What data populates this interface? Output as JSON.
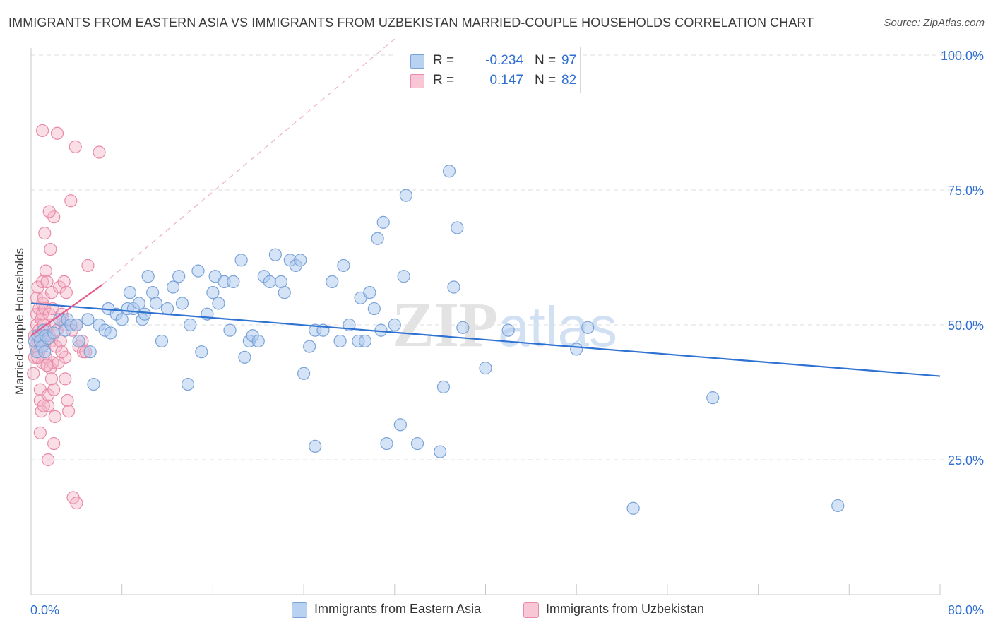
{
  "title": "IMMIGRANTS FROM EASTERN ASIA VS IMMIGRANTS FROM UZBEKISTAN MARRIED-COUPLE HOUSEHOLDS CORRELATION CHART",
  "source": "Source: ZipAtlas.com",
  "watermark": {
    "zip": "ZIP",
    "atlas": "atlas"
  },
  "legend": {
    "rows": [
      {
        "r_label": "R =",
        "r_value": "-0.234",
        "n_label": "N =",
        "n_value": "97"
      },
      {
        "r_label": "R =",
        "r_value": "0.147",
        "n_label": "N =",
        "n_value": "82"
      }
    ]
  },
  "bottom_legend": {
    "series1": "Immigrants from Eastern Asia",
    "series2": "Immigrants from Uzbekistan"
  },
  "colors": {
    "blue_fill": "#a9c7ee",
    "blue_stroke": "#7aa3d8",
    "blue_line": "#2f72d2",
    "pink_fill": "#f5b5c8",
    "pink_stroke": "#e88aa8",
    "pink_line": "#e45a8a",
    "grid": "#dddddd",
    "axis_text": "#2e6fd1"
  },
  "chart_data": {
    "type": "scatter",
    "title": "IMMIGRANTS FROM EASTERN ASIA VS IMMIGRANTS FROM UZBEKISTAN MARRIED-COUPLE HOUSEHOLDS CORRELATION CHART",
    "xlabel": "",
    "ylabel": "Married-couple Households",
    "xlim": [
      0,
      80
    ],
    "ylim": [
      0,
      105
    ],
    "x_tick_labels": [
      "0.0%",
      "80.0%"
    ],
    "y_ticks": [
      25,
      50,
      75,
      100
    ],
    "y_tick_labels": [
      "25.0%",
      "50.0%",
      "75.0%",
      "100.0%"
    ],
    "series": [
      {
        "name": "Immigrants from Eastern Asia",
        "r": -0.234,
        "n": 97,
        "trend": {
          "x0": 0,
          "y0": 54.0,
          "x1": 80,
          "y1": 40.5
        },
        "points": [
          [
            0.3,
            47
          ],
          [
            0.5,
            45
          ],
          [
            0.6,
            48
          ],
          [
            0.8,
            47
          ],
          [
            1,
            46
          ],
          [
            1.1,
            49
          ],
          [
            1.2,
            45
          ],
          [
            1.3,
            48
          ],
          [
            1.5,
            47.5
          ],
          [
            2,
            48.5
          ],
          [
            2.5,
            51
          ],
          [
            3,
            49
          ],
          [
            3.2,
            51
          ],
          [
            3.5,
            50
          ],
          [
            4,
            50
          ],
          [
            4.2,
            47
          ],
          [
            5,
            51
          ],
          [
            5.2,
            45
          ],
          [
            5.5,
            39
          ],
          [
            6,
            50
          ],
          [
            6.5,
            49
          ],
          [
            6.8,
            53
          ],
          [
            7,
            48.5
          ],
          [
            7.5,
            52
          ],
          [
            8,
            51
          ],
          [
            8.5,
            53
          ],
          [
            8.7,
            56
          ],
          [
            9,
            53
          ],
          [
            9.5,
            54
          ],
          [
            9.8,
            51
          ],
          [
            10,
            52
          ],
          [
            10.3,
            59
          ],
          [
            10.7,
            56
          ],
          [
            11,
            54
          ],
          [
            11.5,
            47
          ],
          [
            12,
            53
          ],
          [
            12.5,
            57
          ],
          [
            13,
            59
          ],
          [
            13.3,
            54
          ],
          [
            13.8,
            39
          ],
          [
            14,
            50
          ],
          [
            14.7,
            60
          ],
          [
            15,
            45
          ],
          [
            15.5,
            52
          ],
          [
            16,
            56
          ],
          [
            16.2,
            59
          ],
          [
            16.5,
            54
          ],
          [
            17,
            58
          ],
          [
            17.5,
            49
          ],
          [
            17.8,
            58
          ],
          [
            18.5,
            62
          ],
          [
            18.8,
            44
          ],
          [
            19.2,
            47
          ],
          [
            19.5,
            48
          ],
          [
            20,
            47
          ],
          [
            20.5,
            59
          ],
          [
            21,
            58
          ],
          [
            21.5,
            63
          ],
          [
            22,
            58
          ],
          [
            22.3,
            56
          ],
          [
            22.8,
            62
          ],
          [
            23.3,
            61
          ],
          [
            23.7,
            62
          ],
          [
            24,
            41
          ],
          [
            24.5,
            46
          ],
          [
            25,
            49
          ],
          [
            25.7,
            49
          ],
          [
            26.5,
            58
          ],
          [
            27.2,
            47
          ],
          [
            27.5,
            61
          ],
          [
            28,
            50
          ],
          [
            28.8,
            47
          ],
          [
            29,
            55
          ],
          [
            29.4,
            47
          ],
          [
            29.8,
            56
          ],
          [
            30.2,
            53
          ],
          [
            30.5,
            66
          ],
          [
            30.8,
            49
          ],
          [
            31,
            69
          ],
          [
            32,
            50
          ],
          [
            32.5,
            31.5
          ],
          [
            32.8,
            59
          ],
          [
            33,
            74
          ],
          [
            31.3,
            28
          ],
          [
            34,
            28
          ],
          [
            36,
            26.5
          ],
          [
            36.3,
            38.5
          ],
          [
            36.8,
            78.5
          ],
          [
            37.2,
            57
          ],
          [
            37.5,
            68
          ],
          [
            38,
            49.5
          ],
          [
            40,
            42
          ],
          [
            42,
            49
          ],
          [
            48,
            45.5
          ],
          [
            49,
            49.5
          ],
          [
            53,
            16
          ],
          [
            60,
            36.5
          ],
          [
            71,
            16.5
          ],
          [
            25,
            27.5
          ]
        ]
      },
      {
        "name": "Immigrants from Uzbekistan",
        "r": 0.147,
        "n": 82,
        "trend": {
          "x0": 0,
          "y0": 48.0,
          "x1": 6.3,
          "y1": 57.5
        },
        "dashed_extension": {
          "x0": 6.3,
          "y0": 57.5,
          "x1": 32,
          "y1": 103
        },
        "points": [
          [
            0.2,
            41
          ],
          [
            0.3,
            44
          ],
          [
            0.3,
            48
          ],
          [
            0.4,
            46
          ],
          [
            0.5,
            50
          ],
          [
            0.5,
            52
          ],
          [
            0.5,
            55
          ],
          [
            0.6,
            47
          ],
          [
            0.6,
            57
          ],
          [
            0.7,
            45
          ],
          [
            0.7,
            49
          ],
          [
            0.7,
            53
          ],
          [
            0.8,
            30
          ],
          [
            0.8,
            36
          ],
          [
            0.8,
            38
          ],
          [
            0.9,
            46
          ],
          [
            0.9,
            48
          ],
          [
            0.9,
            51
          ],
          [
            1,
            43
          ],
          [
            1,
            52
          ],
          [
            1,
            54
          ],
          [
            1,
            58
          ],
          [
            1.1,
            50
          ],
          [
            1.1,
            55
          ],
          [
            1.2,
            47
          ],
          [
            1.2,
            53
          ],
          [
            1.3,
            44
          ],
          [
            1.3,
            60
          ],
          [
            1.4,
            49
          ],
          [
            1.4,
            58
          ],
          [
            1.5,
            25
          ],
          [
            1.5,
            35
          ],
          [
            1.5,
            37
          ],
          [
            1.6,
            48
          ],
          [
            1.6,
            52
          ],
          [
            1.7,
            42
          ],
          [
            1.7,
            64
          ],
          [
            1.8,
            47
          ],
          [
            1.8,
            56
          ],
          [
            1.9,
            43
          ],
          [
            1.9,
            53
          ],
          [
            2,
            28
          ],
          [
            2,
            70
          ],
          [
            2,
            38
          ],
          [
            2.2,
            46
          ],
          [
            2.2,
            50
          ],
          [
            2.3,
            49
          ],
          [
            2.5,
            57
          ],
          [
            2.6,
            47
          ],
          [
            2.7,
            52
          ],
          [
            2.8,
            51
          ],
          [
            2.9,
            58
          ],
          [
            3,
            40
          ],
          [
            3,
            44
          ],
          [
            3,
            50
          ],
          [
            3.1,
            56
          ],
          [
            3.2,
            36
          ],
          [
            3.3,
            34
          ],
          [
            3.5,
            73
          ],
          [
            3.7,
            18
          ],
          [
            3.9,
            83
          ],
          [
            4,
            17
          ],
          [
            4,
            50
          ],
          [
            4.2,
            46
          ],
          [
            4.5,
            47
          ],
          [
            4.6,
            45
          ],
          [
            5,
            61
          ],
          [
            6,
            82
          ],
          [
            1,
            86
          ],
          [
            2.3,
            85.5
          ],
          [
            1.2,
            67
          ],
          [
            1.6,
            71
          ],
          [
            1.4,
            42.5
          ],
          [
            0.9,
            34
          ],
          [
            1.8,
            40
          ],
          [
            2.1,
            33
          ],
          [
            0.6,
            44
          ],
          [
            1.1,
            35
          ],
          [
            2.4,
            43
          ],
          [
            3.6,
            49
          ],
          [
            2.7,
            45
          ],
          [
            4.8,
            45
          ]
        ]
      }
    ]
  }
}
